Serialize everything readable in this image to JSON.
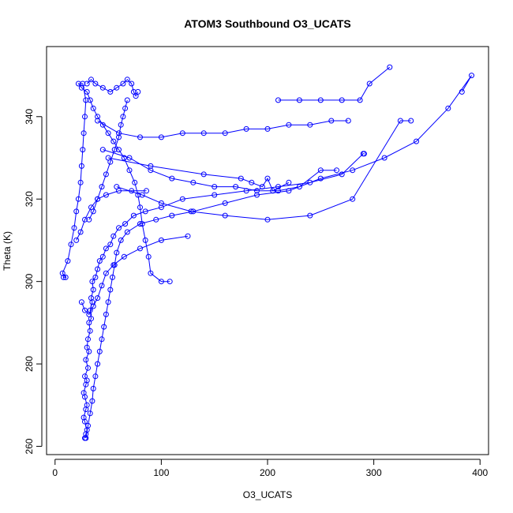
{
  "chart_data": {
    "type": "line",
    "title": "ATOM3 Southbound O3_UCATS",
    "xlabel": "O3_UCATS",
    "ylabel": "Theta (K)",
    "xlim": [
      -8,
      408
    ],
    "ylim": [
      258,
      357
    ],
    "xticks": [
      0,
      100,
      200,
      300,
      400
    ],
    "yticks": [
      260,
      280,
      300,
      320,
      340
    ],
    "grid": false,
    "legend": "none",
    "color": "#0000ff",
    "marker": "open-circle",
    "series": [
      {
        "values_note_free": true,
        "points": [
          [
            28,
            262
          ],
          [
            29,
            263
          ],
          [
            30,
            264
          ],
          [
            28,
            266
          ],
          [
            27,
            267
          ],
          [
            29,
            269
          ],
          [
            30,
            270
          ],
          [
            28,
            272
          ],
          [
            27,
            273
          ],
          [
            29,
            275
          ],
          [
            30,
            276
          ],
          [
            28,
            277
          ],
          [
            31,
            279
          ],
          [
            29,
            281
          ],
          [
            32,
            283
          ],
          [
            30,
            284
          ],
          [
            31,
            286
          ],
          [
            33,
            288
          ],
          [
            32,
            290
          ],
          [
            34,
            291
          ],
          [
            33,
            293
          ],
          [
            35,
            295
          ],
          [
            34,
            296
          ],
          [
            36,
            298
          ],
          [
            35,
            300
          ],
          [
            38,
            301
          ],
          [
            40,
            303
          ],
          [
            42,
            305
          ],
          [
            45,
            306
          ],
          [
            48,
            308
          ],
          [
            52,
            309
          ],
          [
            55,
            311
          ],
          [
            60,
            313
          ],
          [
            66,
            314
          ],
          [
            74,
            316
          ],
          [
            85,
            317
          ],
          [
            100,
            318
          ],
          [
            120,
            320
          ],
          [
            150,
            321
          ],
          [
            180,
            322
          ],
          [
            210,
            323
          ],
          [
            240,
            324
          ],
          [
            270,
            326
          ],
          [
            290,
            331
          ],
          [
            291,
            331
          ]
        ]
      },
      {
        "points": [
          [
            29,
            262
          ],
          [
            31,
            265
          ],
          [
            33,
            268
          ],
          [
            35,
            271
          ],
          [
            36,
            274
          ],
          [
            38,
            277
          ],
          [
            40,
            280
          ],
          [
            42,
            283
          ],
          [
            44,
            286
          ],
          [
            46,
            289
          ],
          [
            48,
            292
          ],
          [
            50,
            295
          ],
          [
            52,
            298
          ],
          [
            54,
            301
          ],
          [
            56,
            304
          ],
          [
            58,
            307
          ],
          [
            62,
            310
          ],
          [
            68,
            312
          ],
          [
            80,
            314
          ],
          [
            95,
            315
          ],
          [
            110,
            316
          ],
          [
            130,
            317
          ],
          [
            160,
            319
          ],
          [
            190,
            321
          ],
          [
            220,
            322
          ],
          [
            250,
            325
          ],
          [
            280,
            327
          ],
          [
            310,
            330
          ],
          [
            340,
            334
          ],
          [
            370,
            342
          ],
          [
            392,
            350
          ],
          [
            383,
            346
          ]
        ]
      },
      {
        "points": [
          [
            8,
            301
          ],
          [
            10,
            301
          ],
          [
            7,
            302
          ],
          [
            12,
            305
          ],
          [
            15,
            309
          ],
          [
            18,
            313
          ],
          [
            20,
            317
          ],
          [
            22,
            320
          ],
          [
            24,
            324
          ],
          [
            25,
            328
          ],
          [
            26,
            332
          ],
          [
            27,
            336
          ],
          [
            28,
            340
          ],
          [
            29,
            344
          ],
          [
            26,
            348
          ],
          [
            22,
            348
          ],
          [
            25,
            347
          ],
          [
            30,
            346
          ],
          [
            33,
            344
          ],
          [
            36,
            342
          ],
          [
            40,
            340
          ],
          [
            45,
            338
          ],
          [
            50,
            336
          ],
          [
            55,
            334
          ],
          [
            60,
            332
          ],
          [
            65,
            330
          ],
          [
            70,
            327
          ],
          [
            75,
            324
          ],
          [
            78,
            321
          ],
          [
            80,
            318
          ],
          [
            82,
            314
          ],
          [
            85,
            310
          ],
          [
            88,
            306
          ],
          [
            90,
            302
          ],
          [
            100,
            300
          ],
          [
            108,
            300
          ]
        ]
      },
      {
        "points": [
          [
            30,
            348
          ],
          [
            34,
            349
          ],
          [
            38,
            348
          ],
          [
            45,
            347
          ],
          [
            52,
            346
          ],
          [
            58,
            347
          ],
          [
            64,
            348
          ],
          [
            68,
            349
          ],
          [
            72,
            348
          ],
          [
            74,
            346
          ],
          [
            76,
            345
          ],
          [
            78,
            346
          ]
        ]
      },
      {
        "points": [
          [
            40,
            339
          ],
          [
            60,
            336
          ],
          [
            80,
            335
          ],
          [
            100,
            335
          ],
          [
            120,
            336
          ],
          [
            140,
            336
          ],
          [
            160,
            336
          ],
          [
            180,
            337
          ],
          [
            200,
            337
          ],
          [
            220,
            338
          ],
          [
            240,
            338
          ],
          [
            260,
            339
          ],
          [
            276,
            339
          ]
        ]
      },
      {
        "points": [
          [
            45,
            332
          ],
          [
            70,
            330
          ],
          [
            90,
            327
          ],
          [
            110,
            325
          ],
          [
            130,
            324
          ],
          [
            150,
            323
          ],
          [
            170,
            323
          ],
          [
            190,
            322
          ],
          [
            210,
            322
          ],
          [
            230,
            323
          ],
          [
            250,
            327
          ],
          [
            265,
            327
          ]
        ]
      },
      {
        "points": [
          [
            210,
            344
          ],
          [
            230,
            344
          ],
          [
            250,
            344
          ],
          [
            270,
            344
          ],
          [
            287,
            344
          ],
          [
            296,
            348
          ],
          [
            315,
            352
          ]
        ]
      },
      {
        "points": [
          [
            50,
            330
          ],
          [
            90,
            328
          ],
          [
            140,
            326
          ],
          [
            175,
            325
          ],
          [
            185,
            324
          ],
          [
            195,
            323
          ],
          [
            200,
            325
          ],
          [
            205,
            322
          ],
          [
            220,
            324
          ]
        ]
      },
      {
        "points": [
          [
            58,
            323
          ],
          [
            82,
            321
          ],
          [
            100,
            319
          ],
          [
            128,
            317
          ],
          [
            160,
            316
          ],
          [
            200,
            315
          ],
          [
            240,
            316
          ],
          [
            280,
            320
          ],
          [
            325,
            339
          ],
          [
            335,
            339
          ]
        ]
      },
      {
        "points": [
          [
            25,
            295
          ],
          [
            28,
            293
          ],
          [
            32,
            292
          ],
          [
            36,
            294
          ],
          [
            40,
            296
          ],
          [
            44,
            299
          ],
          [
            48,
            302
          ],
          [
            55,
            304
          ],
          [
            65,
            306
          ],
          [
            80,
            308
          ],
          [
            100,
            310
          ],
          [
            125,
            311
          ]
        ]
      },
      {
        "points": [
          [
            32,
            315
          ],
          [
            36,
            317
          ],
          [
            40,
            320
          ],
          [
            44,
            323
          ],
          [
            48,
            326
          ],
          [
            52,
            329
          ],
          [
            56,
            332
          ],
          [
            60,
            335
          ],
          [
            62,
            338
          ],
          [
            64,
            340
          ],
          [
            66,
            342
          ],
          [
            68,
            344
          ]
        ]
      },
      {
        "points": [
          [
            20,
            310
          ],
          [
            24,
            312
          ],
          [
            28,
            315
          ],
          [
            34,
            318
          ],
          [
            40,
            320
          ],
          [
            48,
            321
          ],
          [
            60,
            322
          ],
          [
            72,
            322
          ],
          [
            86,
            322
          ]
        ]
      }
    ]
  }
}
